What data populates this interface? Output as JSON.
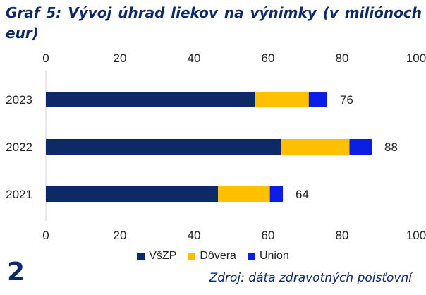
{
  "page": {
    "title": "Graf 5: Vývoj úhrad liekov na výnimky (v miliónoch eur)",
    "page_number": "2",
    "source": "Zdroj: dáta zdravotných poisťovní"
  },
  "chart_data": {
    "type": "bar",
    "orientation": "horizontal",
    "stacked": true,
    "title": "Graf 5: Vývoj úhrad liekov na výnimky (v miliónoch eur)",
    "categories": [
      "2023",
      "2022",
      "2021"
    ],
    "series": [
      {
        "name": "VšZP",
        "color": "#0d2a66",
        "values": [
          56.5,
          63.5,
          46.5
        ]
      },
      {
        "name": "Dôvera",
        "color": "#ffc000",
        "values": [
          14.5,
          18.5,
          14
        ]
      },
      {
        "name": "Union",
        "color": "#0a1ee6",
        "values": [
          5,
          6,
          3.5
        ]
      }
    ],
    "totals": [
      "76",
      "88",
      "64"
    ],
    "xlim": [
      0,
      100
    ],
    "x_ticks": [
      "0",
      "20",
      "40",
      "60",
      "80",
      "100"
    ],
    "x_axis_positions": [
      "top",
      "bottom"
    ],
    "grid": false,
    "legend_position": "bottom"
  }
}
